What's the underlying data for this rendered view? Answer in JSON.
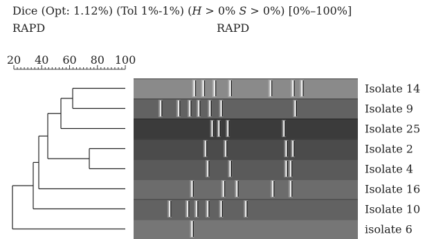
{
  "header": {
    "line1": "Dice (Opt: 1.12%) (Tol 1%-1%) (H > 0% S > 0%) [0%–100%]",
    "line1_parts": [
      "Dice (Opt: 1.12%) (Tol 1%-1%) (",
      "H",
      " > 0% ",
      "S",
      " > 0%) [0%–100%]"
    ],
    "left_label": "RAPD",
    "right_label": "RAPD"
  },
  "scale": {
    "ticks": [
      "20",
      "40",
      "60",
      "80",
      "100"
    ]
  },
  "isolates": [
    {
      "label": "Isolate 14",
      "tone": "#8a8a8a",
      "bands": [
        0.27,
        0.31,
        0.36,
        0.43,
        0.61,
        0.71,
        0.75
      ]
    },
    {
      "label": "Isolate 9",
      "tone": "#626262",
      "bands": [
        0.12,
        0.2,
        0.25,
        0.29,
        0.34,
        0.39,
        0.72
      ]
    },
    {
      "label": "Isolate 25",
      "tone": "#3b3b3b",
      "bands": [
        0.35,
        0.38,
        0.42,
        0.67
      ]
    },
    {
      "label": "Isolate 2",
      "tone": "#4b4b4b",
      "bands": [
        0.32,
        0.41,
        0.68,
        0.71
      ]
    },
    {
      "label": "Isolate 4",
      "tone": "#5a5a5a",
      "bands": [
        0.33,
        0.43,
        0.68,
        0.7
      ]
    },
    {
      "label": "Isolate 16",
      "tone": "#6c6c6c",
      "bands": [
        0.26,
        0.4,
        0.46,
        0.62,
        0.7
      ]
    },
    {
      "label": "Isolate 10",
      "tone": "#626262",
      "bands": [
        0.16,
        0.24,
        0.28,
        0.33,
        0.39,
        0.5
      ]
    },
    {
      "label": "isolate 6",
      "tone": "#767676",
      "bands": [
        0.26
      ]
    }
  ]
}
